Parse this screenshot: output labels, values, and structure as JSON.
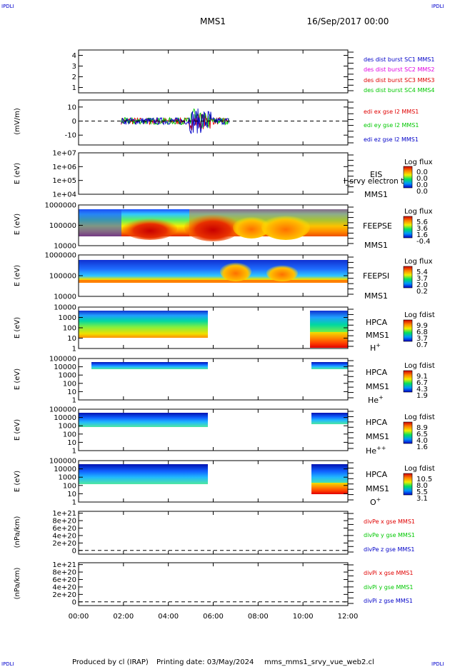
{
  "header": {
    "corner_label": "IPDLI",
    "spacecraft": "MMS1",
    "datetime": "16/Sep/2017 00:00"
  },
  "footer": {
    "produced_by": "Produced by cl (IRAP)",
    "printing_date": "Printing date: 03/May/2024",
    "script_name": "mms_mms1_srvy_vue_web2.cl"
  },
  "colors": {
    "blue": "#0000c8",
    "magenta": "#e000e0",
    "red": "#e00000",
    "green": "#00c800"
  },
  "chart_data": {
    "type": "multi-panel time series and spectrograms",
    "x_range": [
      "00:00",
      "12:00"
    ],
    "x_tick_labels": [
      "00:00",
      "02:00",
      "04:00",
      "06:00",
      "08:00",
      "10:00",
      "12:00"
    ],
    "x_ticks_hours": [
      0,
      2,
      4,
      6,
      8,
      10,
      12
    ],
    "panels": [
      {
        "id": "des_dist",
        "type": "line",
        "ylabel": "",
        "y_range": [
          0.5,
          4.5
        ],
        "y_tick_labels": [
          "1",
          "2",
          "3",
          "4"
        ],
        "y_ticks": [
          1,
          2,
          3,
          4
        ],
        "series": [
          {
            "name": "des dist burst SC1 MMS1",
            "color": "#0000c8",
            "values": []
          },
          {
            "name": "des dist burst SC2 MMS2",
            "color": "#e000e0",
            "values": []
          },
          {
            "name": "des dist burst SC3 MMS3",
            "color": "#e00000",
            "values": []
          },
          {
            "name": "des dist burst SC4 MMS4",
            "color": "#00c800",
            "values": []
          }
        ]
      },
      {
        "id": "edi_e",
        "type": "line",
        "ylabel": "(mV/m)",
        "y_range": [
          -17,
          15
        ],
        "y_tick_labels": [
          "10",
          "0",
          "-10"
        ],
        "y_ticks": [
          10,
          0,
          -10
        ],
        "zero_line": true,
        "data_hours": [
          1.9,
          6.7
        ],
        "series": [
          {
            "name": "edi ex gse l2 MMS1",
            "color": "#e00000"
          },
          {
            "name": "edi ey gse l2 MMS1",
            "color": "#00c800"
          },
          {
            "name": "edi ez gse l2 MMS1",
            "color": "#0000c8"
          }
        ]
      },
      {
        "id": "eis",
        "type": "heatmap",
        "ylabel": "E (eV)",
        "y_tick_labels": [
          "1e+07",
          "1e+06",
          "1e+05",
          "1e+04"
        ],
        "instrument": "EIS",
        "spacecraft": "MMS1",
        "overlay_text": "I_srvy electron to",
        "colorbar": {
          "title": "Log flux",
          "ticks": [
            "0.0",
            "0.0",
            "0.0",
            "0.0"
          ]
        }
      },
      {
        "id": "feepse",
        "type": "heatmap",
        "ylabel": "E (eV)",
        "y_tick_labels": [
          "1000000",
          "100000",
          "10000"
        ],
        "instrument": "FEEPSE",
        "spacecraft": "MMS1",
        "colorbar": {
          "title": "Log flux",
          "ticks": [
            "5.6",
            "3.6",
            "1.6",
            "-0.4"
          ]
        }
      },
      {
        "id": "feepsi",
        "type": "heatmap",
        "ylabel": "E (eV)",
        "y_tick_labels": [
          "1000000",
          "100000",
          "10000"
        ],
        "instrument": "FEEPSI",
        "spacecraft": "MMS1",
        "colorbar": {
          "title": "Log flux",
          "ticks": [
            "5.4",
            "3.7",
            "2.0",
            "0.2"
          ]
        }
      },
      {
        "id": "hpca_h",
        "type": "heatmap",
        "ylabel": "E (eV)",
        "y_tick_labels": [
          "10000",
          "1000",
          "100",
          "10",
          "1"
        ],
        "instrument": "HPCA",
        "spacecraft": "MMS1",
        "species": "H",
        "species_charge": "+",
        "colorbar": {
          "title": "Log fdist",
          "ticks": [
            "9.9",
            "6.8",
            "3.7",
            "0.7"
          ]
        }
      },
      {
        "id": "hpca_he",
        "type": "heatmap",
        "ylabel": "E (eV)",
        "y_tick_labels": [
          "100000",
          "10000",
          "1000",
          "100",
          "10",
          "1"
        ],
        "instrument": "HPCA",
        "spacecraft": "MMS1",
        "species": "He",
        "species_charge": "+",
        "colorbar": {
          "title": "Log fdist",
          "ticks": [
            "9.1",
            "6.7",
            "4.3",
            "1.9"
          ]
        }
      },
      {
        "id": "hpca_hepp",
        "type": "heatmap",
        "ylabel": "E (eV)",
        "y_tick_labels": [
          "100000",
          "10000",
          "1000",
          "100",
          "10",
          "1"
        ],
        "instrument": "HPCA",
        "spacecraft": "MMS1",
        "species": "He",
        "species_charge": "++",
        "colorbar": {
          "title": "Log fdist",
          "ticks": [
            "8.9",
            "6.5",
            "4.0",
            "1.6"
          ]
        }
      },
      {
        "id": "hpca_o",
        "type": "heatmap",
        "ylabel": "E (eV)",
        "y_tick_labels": [
          "100000",
          "10000",
          "1000",
          "100",
          "10",
          "1"
        ],
        "instrument": "HPCA",
        "spacecraft": "MMS1",
        "species": "O",
        "species_charge": "+",
        "colorbar": {
          "title": "Log fdist",
          "ticks": [
            "10.5",
            "8.0",
            "5.5",
            "3.1"
          ]
        }
      },
      {
        "id": "divpe",
        "type": "line",
        "ylabel": "(nPa/km)",
        "y_range": [
          -1e+20,
          1.05e+21
        ],
        "y_tick_labels": [
          "1e+21",
          "8e+20",
          "6e+20",
          "4e+20",
          "2e+20",
          "0"
        ],
        "y_ticks": [
          1e+21,
          8e+20,
          6e+20,
          4e+20,
          2e+20,
          0
        ],
        "zero_line": true,
        "series": [
          {
            "name": "divPe x gse MMS1",
            "color": "#e00000",
            "values": []
          },
          {
            "name": "divPe y gse MMS1",
            "color": "#00c800",
            "values": []
          },
          {
            "name": "divPe z gse MMS1",
            "color": "#0000c8",
            "values": []
          }
        ]
      },
      {
        "id": "divpi",
        "type": "line",
        "ylabel": "(nPa/km)",
        "y_range": [
          -1e+20,
          1.05e+21
        ],
        "y_tick_labels": [
          "1e+21",
          "8e+20",
          "6e+20",
          "4e+20",
          "2e+20",
          "0"
        ],
        "y_ticks": [
          1e+21,
          8e+20,
          6e+20,
          4e+20,
          2e+20,
          0
        ],
        "zero_line": true,
        "series": [
          {
            "name": "divPi x gse MMS1",
            "color": "#e00000",
            "values": []
          },
          {
            "name": "divPi y gse MMS1",
            "color": "#00c800",
            "values": []
          },
          {
            "name": "divPi z gse MMS1",
            "color": "#0000c8",
            "values": []
          }
        ]
      }
    ]
  }
}
